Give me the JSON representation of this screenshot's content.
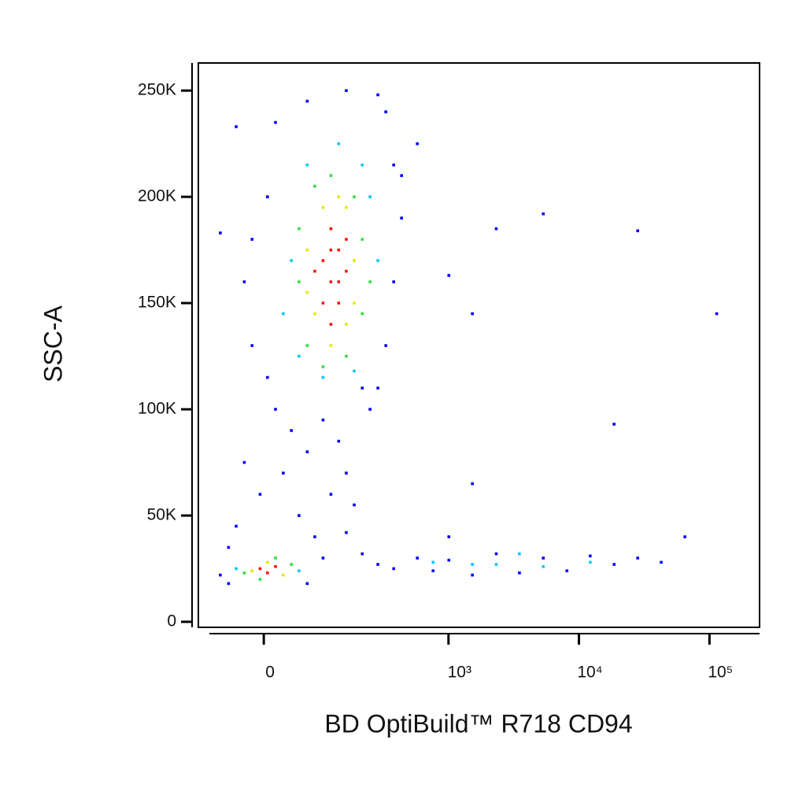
{
  "chart_data": {
    "type": "scatter",
    "xlabel": "BD OptiBuild™ R718 CD94",
    "ylabel": "SSC-A",
    "xscale": "arcsinh",
    "xcofactor": 77,
    "xlim": [
      -110,
      242000
    ],
    "ylim": [
      -2600,
      263000
    ],
    "xticks": [
      0,
      {
        "value": 1000,
        "label": "10³"
      },
      {
        "value": 10000,
        "label": "10⁴"
      },
      {
        "value": 100000,
        "label": "10⁵"
      }
    ],
    "yticks": [
      0,
      {
        "value": 50000,
        "label": "50K"
      },
      {
        "value": 100000,
        "label": "100K"
      },
      {
        "value": 150000,
        "label": "150K"
      },
      {
        "value": 200000,
        "label": "200K"
      },
      {
        "value": 250000,
        "label": "250K"
      }
    ],
    "series": [
      {
        "color": "#0000ff",
        "x": [
          16,
          65,
          156,
          283,
          327,
          377,
          434,
          377,
          327,
          283,
          5,
          -16,
          -27,
          -16,
          5,
          16,
          39,
          65,
          96,
          134,
          156,
          27,
          -5,
          -27,
          114,
          182,
          51,
          -39,
          79,
          156,
          -51,
          -65,
          -51,
          65,
          96,
          212,
          283,
          377,
          575,
          761,
          1006,
          1525,
          2325,
          3500,
          5330,
          8090,
          12200,
          18600,
          28200,
          42700,
          64800,
          1006,
          1525,
          2325,
          5330,
          28200,
          113600,
          1525,
          1006,
          18600,
          575,
          434,
          -65,
          -39,
          245,
          212
        ],
        "y": [
          235000,
          245000,
          250000,
          248000,
          240000,
          215000,
          190000,
          160000,
          130000,
          110000,
          200000,
          180000,
          160000,
          130000,
          115000,
          100000,
          90000,
          80000,
          95000,
          85000,
          70000,
          70000,
          60000,
          75000,
          60000,
          55000,
          50000,
          45000,
          40000,
          42000,
          35000,
          22000,
          18000,
          18000,
          30000,
          32000,
          27000,
          25000,
          30000,
          24000,
          29000,
          22000,
          32000,
          23000,
          30000,
          24000,
          31000,
          27000,
          30000,
          28000,
          40000,
          40000,
          65000,
          185000,
          192000,
          184000,
          145000,
          145000,
          163000,
          93000,
          225000,
          210000,
          183000,
          233000,
          100000,
          110000
        ]
      },
      {
        "color": "#00c8ff",
        "x": [
          39,
          245,
          27,
          212,
          134,
          283,
          96,
          182,
          51,
          65,
          -39,
          51,
          761,
          2325,
          5330,
          12200,
          3500,
          1525
        ],
        "y": [
          170000,
          200000,
          145000,
          215000,
          225000,
          170000,
          115000,
          118000,
          125000,
          215000,
          25000,
          24000,
          28000,
          27000,
          26000,
          28000,
          32000,
          27000
        ]
      },
      {
        "color": "#30e040",
        "x": [
          51,
          212,
          182,
          65,
          114,
          245,
          51,
          156,
          96,
          212,
          79,
          -27,
          39,
          -5,
          16
        ],
        "y": [
          160000,
          180000,
          200000,
          130000,
          210000,
          160000,
          185000,
          125000,
          120000,
          145000,
          205000,
          23000,
          27000,
          20000,
          30000
        ]
      },
      {
        "color": "#e8e800",
        "x": [
          79,
          156,
          182,
          65,
          96,
          182,
          114,
          156,
          65,
          134,
          -16,
          27,
          5
        ],
        "y": [
          145000,
          195000,
          170000,
          175000,
          195000,
          150000,
          130000,
          140000,
          155000,
          200000,
          24000,
          22000,
          28000
        ]
      },
      {
        "color": "#ff1010",
        "x": [
          96,
          114,
          134,
          114,
          156,
          96,
          134,
          114,
          156,
          134,
          79,
          114,
          -5,
          5,
          16
        ],
        "y": [
          170000,
          160000,
          175000,
          185000,
          165000,
          150000,
          150000,
          140000,
          180000,
          160000,
          165000,
          175000,
          25000,
          23000,
          26000
        ]
      }
    ]
  }
}
